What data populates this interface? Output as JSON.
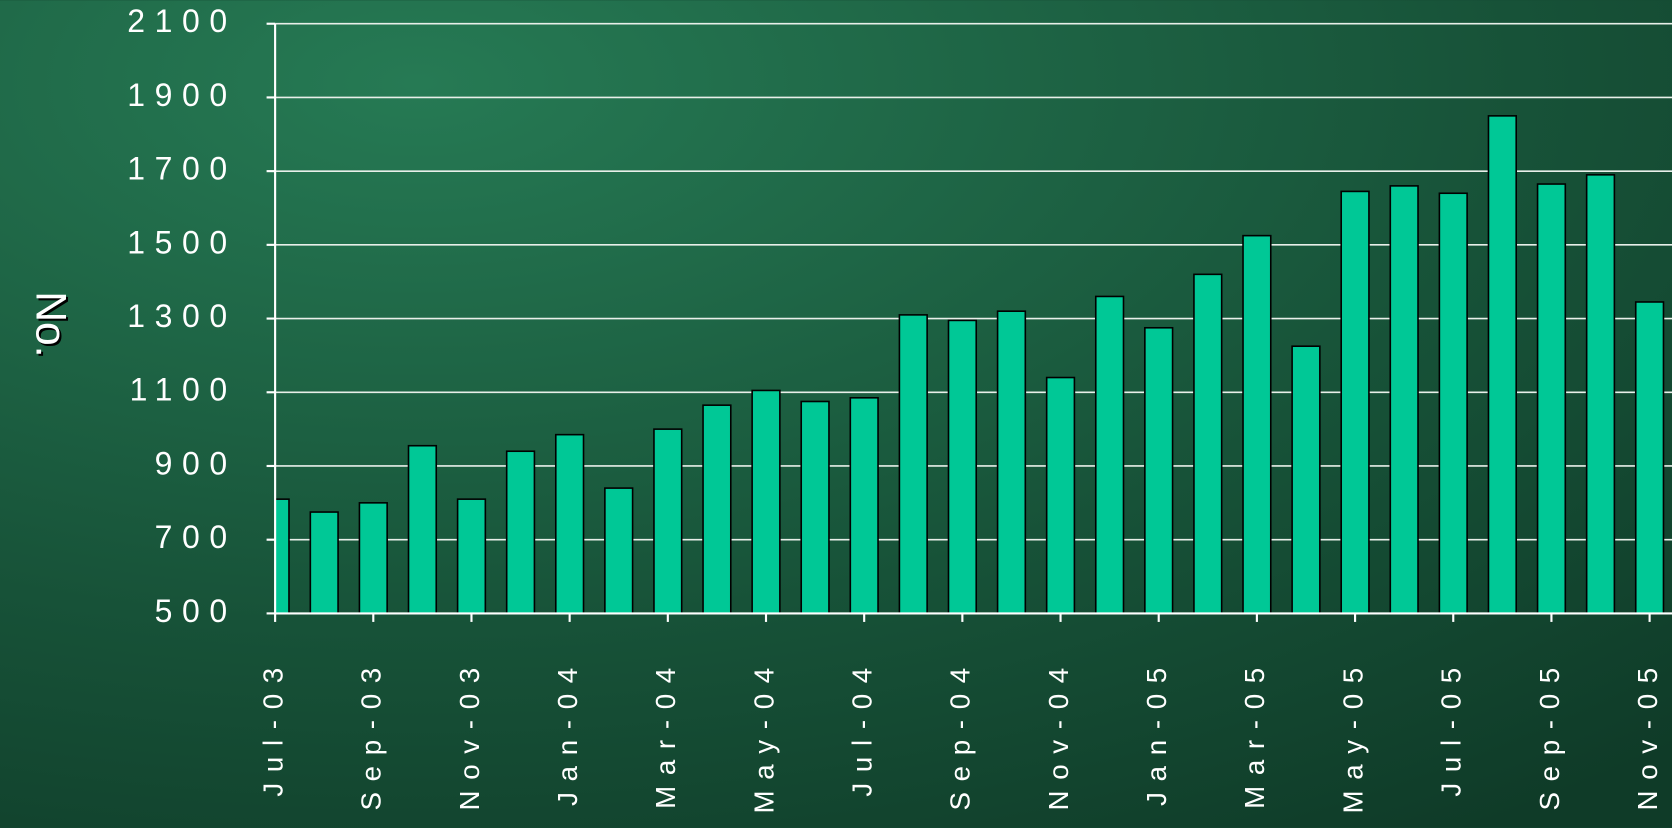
{
  "chart_data": {
    "type": "bar",
    "y_label": "No.",
    "categories": [
      "Jul-03",
      null,
      "Sep-03",
      null,
      "Nov-03",
      null,
      "Jan-04",
      null,
      "Mar-04",
      null,
      "May-04",
      null,
      "Jul-04",
      null,
      "Sep-04",
      null,
      "Nov-04",
      null,
      "Jan-05",
      null,
      "Mar-05",
      null,
      "May-05",
      null,
      "Jul-05",
      null,
      "Sep-05",
      null,
      "Nov-05"
    ],
    "values": [
      810,
      775,
      800,
      955,
      810,
      940,
      985,
      840,
      1000,
      1065,
      1105,
      1075,
      1085,
      1310,
      1295,
      1320,
      1140,
      1360,
      1275,
      1420,
      1525,
      1225,
      1645,
      1660,
      1640,
      1850,
      1665,
      1690,
      1345
    ],
    "color": "#00c896",
    "ylim": [
      500,
      2100
    ],
    "yticks": [
      500,
      700,
      900,
      1100,
      1300,
      1500,
      1700,
      1900,
      2100
    ],
    "grid": true
  }
}
